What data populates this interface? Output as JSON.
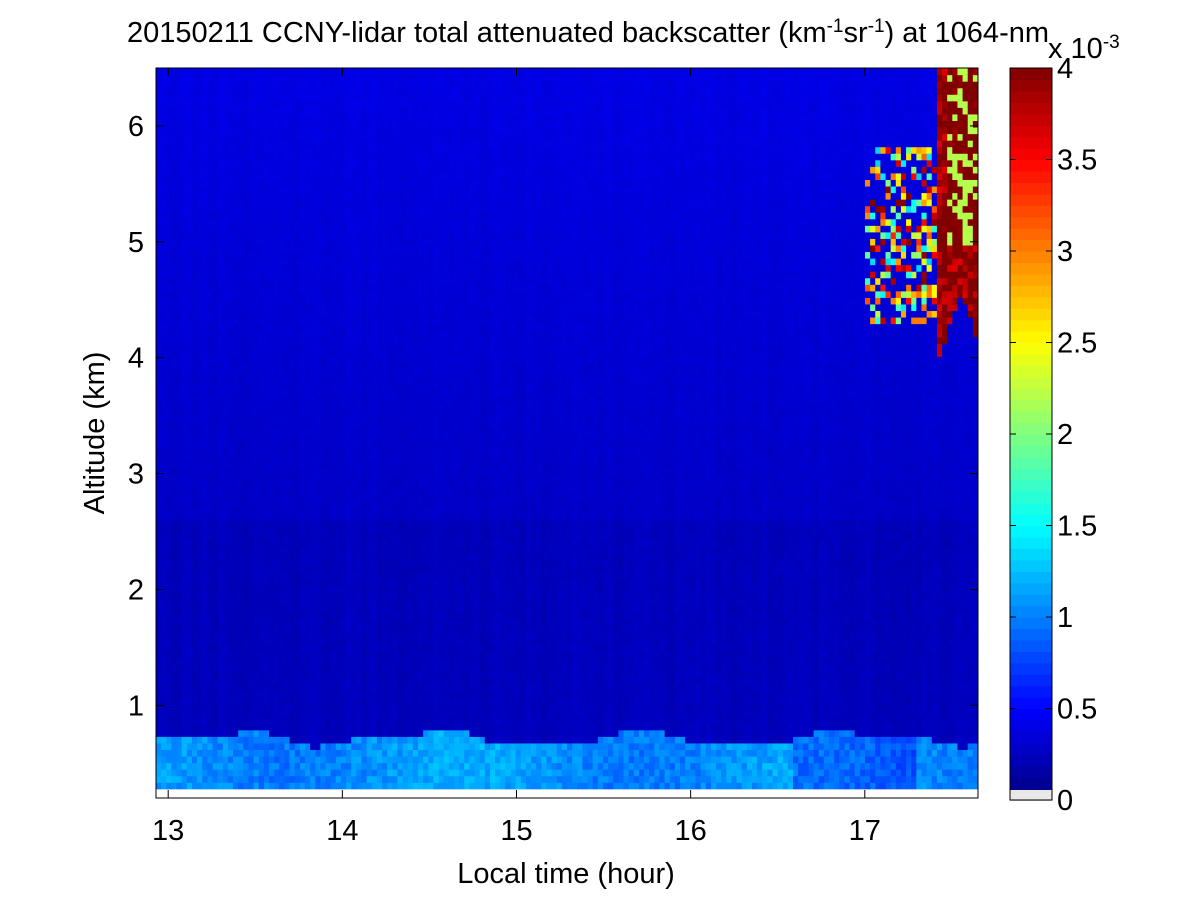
{
  "chart_data": {
    "type": "heatmap",
    "title": {
      "prefix": "20150211 CCNY-lidar total attenuated backscatter (km",
      "sup1": "-1",
      "mid": "sr",
      "sup2": "-1",
      "suffix": ") at 1064-nm"
    },
    "xlabel": "Local time (hour)",
    "ylabel": "Altitude (km)",
    "xlim": [
      12.93,
      17.65
    ],
    "ylim": [
      0.2,
      6.5
    ],
    "x_ticks": [
      13,
      14,
      15,
      16,
      17
    ],
    "y_ticks": [
      1,
      2,
      3,
      4,
      5,
      6
    ],
    "data_extent": {
      "x": [
        12.93,
        17.65
      ],
      "y": [
        0.28,
        6.5
      ]
    },
    "colorbar": {
      "colormap": "jet",
      "range": [
        0,
        4
      ],
      "ticks": [
        0,
        0.5,
        1,
        1.5,
        2,
        2.5,
        3,
        3.5,
        4
      ],
      "ticklabels": [
        "0",
        "0.5",
        "1",
        "1.5",
        "2",
        "2.5",
        "3",
        "3.5",
        "4"
      ],
      "multiplier_base": "x 10",
      "multiplier_exp": "-3"
    },
    "regions": [
      {
        "feature": "boundary-layer aerosol",
        "x": [
          12.93,
          17.65
        ],
        "y": [
          0.28,
          0.78
        ],
        "value_range": [
          0.8,
          1.3
        ]
      },
      {
        "feature": "free troposphere background",
        "x": [
          12.93,
          17.65
        ],
        "y": [
          0.78,
          6.5
        ],
        "value_range": [
          0.1,
          0.4
        ]
      },
      {
        "feature": "cloud",
        "x": [
          17.0,
          17.65
        ],
        "y": [
          4.2,
          6.5
        ],
        "value_range": [
          1.5,
          4.0
        ]
      }
    ],
    "grid": false
  }
}
